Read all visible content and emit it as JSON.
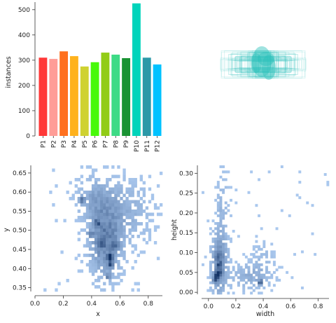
{
  "chart_data": [
    {
      "type": "bar",
      "title": "",
      "xlabel": "",
      "ylabel": "instances",
      "ylim": [
        0,
        530
      ],
      "yticks": [
        0,
        100,
        200,
        300,
        400,
        500
      ],
      "categories": [
        "P1",
        "P2",
        "P3",
        "P4",
        "P5",
        "P6",
        "P7",
        "P8",
        "P9",
        "P10",
        "P11",
        "P12"
      ],
      "values": [
        310,
        305,
        335,
        316,
        275,
        292,
        330,
        322,
        308,
        525,
        310,
        283
      ],
      "colors": [
        "#ff3838",
        "#ff9d97",
        "#ff701f",
        "#ffb21d",
        "#cfd231",
        "#48f90a",
        "#92cc17",
        "#3ddb86",
        "#1a9334",
        "#00d4bb",
        "#2c99a8",
        "#00c2ff"
      ]
    },
    {
      "type": "boxes",
      "title": "",
      "color": "#2bc0bb"
    },
    {
      "type": "heatmap",
      "title": "",
      "xlabel": "x",
      "ylabel": "y",
      "xlim": [
        0.0,
        0.9
      ],
      "ylim": [
        0.34,
        0.67
      ],
      "xticks": [
        "0.0",
        "0.2",
        "0.4",
        "0.6",
        "0.8"
      ],
      "yticks": [
        "0.35",
        "0.40",
        "0.45",
        "0.50",
        "0.55",
        "0.60",
        "0.65"
      ],
      "clusters": [
        {
          "x": 0.5,
          "y": 0.47,
          "sx": 0.07,
          "sy": 0.055,
          "w": 0.55
        },
        {
          "x": 0.43,
          "y": 0.58,
          "sx": 0.08,
          "sy": 0.035,
          "w": 0.25
        },
        {
          "x": 0.62,
          "y": 0.55,
          "sx": 0.12,
          "sy": 0.05,
          "w": 0.2
        }
      ],
      "hotspots": [
        {
          "x": 0.53,
          "y": 0.43,
          "v": 1.0
        },
        {
          "x": 0.47,
          "y": 0.47,
          "v": 0.9
        },
        {
          "x": 0.53,
          "y": 0.41,
          "v": 0.9
        },
        {
          "x": 0.39,
          "y": 0.49,
          "v": 0.75
        },
        {
          "x": 0.52,
          "y": 0.38,
          "v": 0.7
        },
        {
          "x": 0.33,
          "y": 0.58,
          "v": 0.6
        },
        {
          "x": 0.44,
          "y": 0.52,
          "v": 0.7
        },
        {
          "x": 0.57,
          "y": 0.46,
          "v": 0.65
        }
      ]
    },
    {
      "type": "heatmap",
      "title": "",
      "xlabel": "width",
      "ylabel": "height",
      "xlim": [
        -0.05,
        0.88
      ],
      "ylim": [
        -0.005,
        0.32
      ],
      "xticks": [
        "0.0",
        "0.2",
        "0.4",
        "0.6",
        "0.8"
      ],
      "yticks": [
        "0.00",
        "0.05",
        "0.10",
        "0.15",
        "0.20",
        "0.25",
        "0.30"
      ],
      "clusters": [
        {
          "x": 0.08,
          "y": 0.07,
          "sx": 0.035,
          "sy": 0.045,
          "w": 0.55
        },
        {
          "x": 0.1,
          "y": 0.2,
          "sx": 0.03,
          "sy": 0.06,
          "w": 0.15
        },
        {
          "x": 0.3,
          "y": 0.04,
          "sx": 0.09,
          "sy": 0.02,
          "w": 0.2
        },
        {
          "x": 0.4,
          "y": 0.08,
          "sx": 0.05,
          "sy": 0.03,
          "w": 0.1
        }
      ],
      "hotspots": [
        {
          "x": 0.07,
          "y": 0.05,
          "v": 1.0
        },
        {
          "x": 0.06,
          "y": 0.04,
          "v": 0.95
        },
        {
          "x": 0.08,
          "y": 0.07,
          "v": 0.85
        },
        {
          "x": 0.07,
          "y": 0.09,
          "v": 0.7
        },
        {
          "x": 0.05,
          "y": 0.03,
          "v": 0.75
        },
        {
          "x": 0.38,
          "y": 0.025,
          "v": 0.95
        }
      ]
    }
  ]
}
